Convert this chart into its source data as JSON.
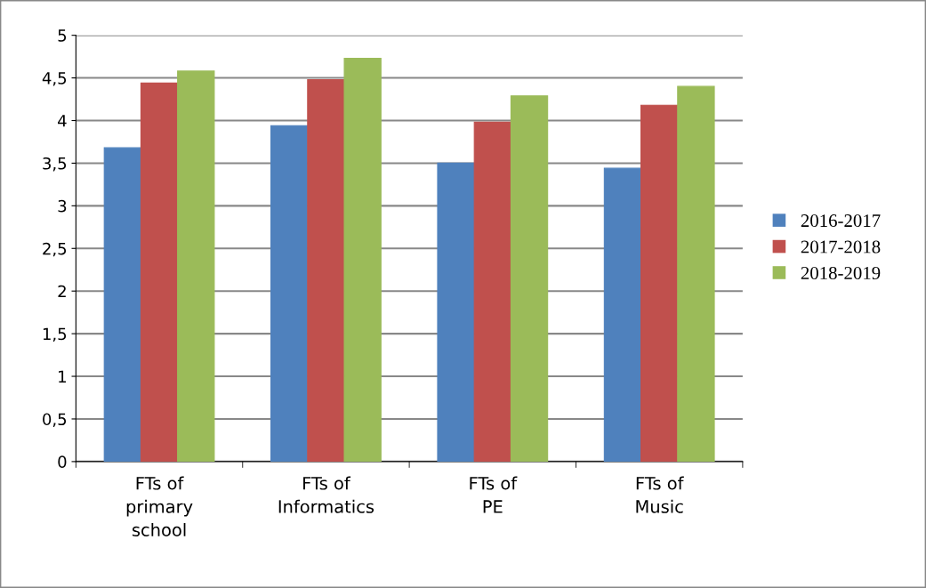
{
  "chart_data": {
    "type": "bar",
    "categories": [
      "FTs of\nprimary\nschool",
      "FTs of\nInformatics",
      "FTs of\nPE",
      "FTs of\nMusic"
    ],
    "series": [
      {
        "name": "2016-2017",
        "color": "#4f81bd",
        "values": [
          3.68,
          3.94,
          3.5,
          3.44
        ]
      },
      {
        "name": "2017-2018",
        "color": "#c0504d",
        "values": [
          4.44,
          4.48,
          3.98,
          4.18
        ]
      },
      {
        "name": "2018-2019",
        "color": "#9bbb59",
        "values": [
          4.58,
          4.73,
          4.29,
          4.4
        ]
      }
    ],
    "ylim": [
      0,
      5
    ],
    "yticks": [
      0,
      {
        "value": 0.5,
        "label": "0,5"
      },
      1,
      {
        "value": 1.5,
        "label": "1,5"
      },
      2,
      {
        "value": 2.5,
        "label": "2,5"
      },
      3,
      {
        "value": 3.5,
        "label": "3,5"
      },
      4,
      {
        "value": 4.5,
        "label": "4,5"
      },
      5
    ],
    "grid": "y",
    "legend": "right"
  }
}
